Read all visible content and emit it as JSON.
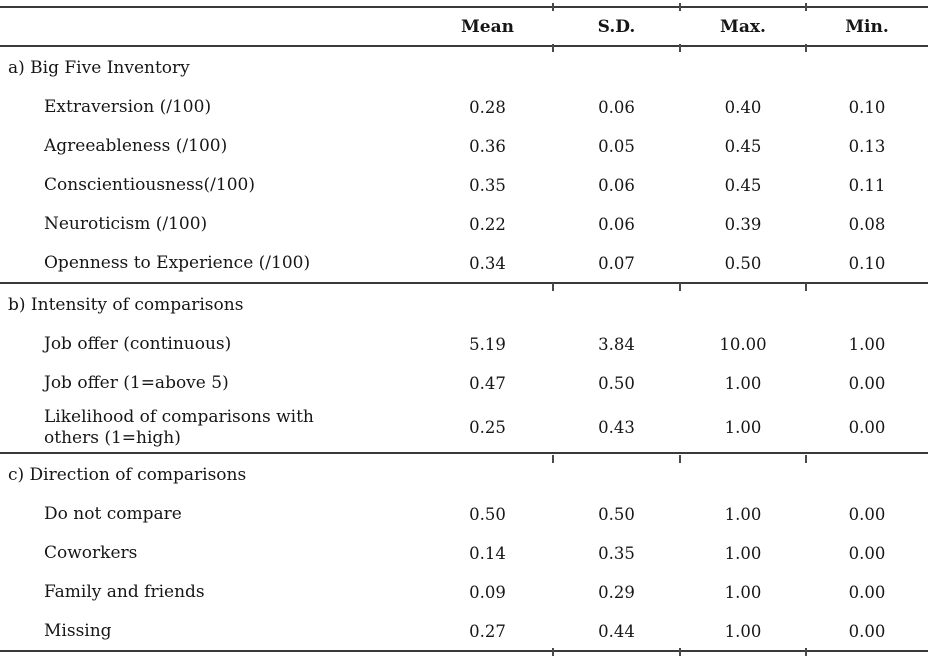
{
  "table": {
    "columns": [
      "Mean",
      "S.D.",
      "Max.",
      "Min."
    ],
    "sections": [
      {
        "header": "a) Big Five Inventory",
        "rows": [
          {
            "label": "Extraversion (/100)",
            "mean": "0.28",
            "sd": "0.06",
            "max": "0.40",
            "min": "0.10"
          },
          {
            "label": "Agreeableness (/100)",
            "mean": "0.36",
            "sd": "0.05",
            "max": "0.45",
            "min": "0.13"
          },
          {
            "label": "Conscientiousness(/100)",
            "mean": "0.35",
            "sd": "0.06",
            "max": "0.45",
            "min": "0.11"
          },
          {
            "label": "Neuroticism (/100)",
            "mean": "0.22",
            "sd": "0.06",
            "max": "0.39",
            "min": "0.08"
          },
          {
            "label": "Openness to Experience (/100)",
            "mean": "0.34",
            "sd": "0.07",
            "max": "0.50",
            "min": "0.10"
          }
        ]
      },
      {
        "header": "b) Intensity of comparisons",
        "rows": [
          {
            "label": "Job offer (continuous)",
            "mean": "5.19",
            "sd": "3.84",
            "max": "10.00",
            "min": "1.00"
          },
          {
            "label": "Job offer (1=above 5)",
            "mean": "0.47",
            "sd": "0.50",
            "max": "1.00",
            "min": "0.00"
          },
          {
            "label": "Likelihood of comparisons with others (1=high)",
            "mean": "0.25",
            "sd": "0.43",
            "max": "1.00",
            "min": "0.00"
          }
        ]
      },
      {
        "header": "c) Direction of comparisons",
        "rows": [
          {
            "label": "Do not compare",
            "mean": "0.50",
            "sd": "0.50",
            "max": "1.00",
            "min": "0.00"
          },
          {
            "label": "Coworkers",
            "mean": "0.14",
            "sd": "0.35",
            "max": "1.00",
            "min": "0.00"
          },
          {
            "label": "Family and friends",
            "mean": "0.09",
            "sd": "0.29",
            "max": "1.00",
            "min": "0.00"
          },
          {
            "label": "Missing",
            "mean": "0.27",
            "sd": "0.44",
            "max": "1.00",
            "min": "0.00"
          }
        ]
      }
    ]
  }
}
